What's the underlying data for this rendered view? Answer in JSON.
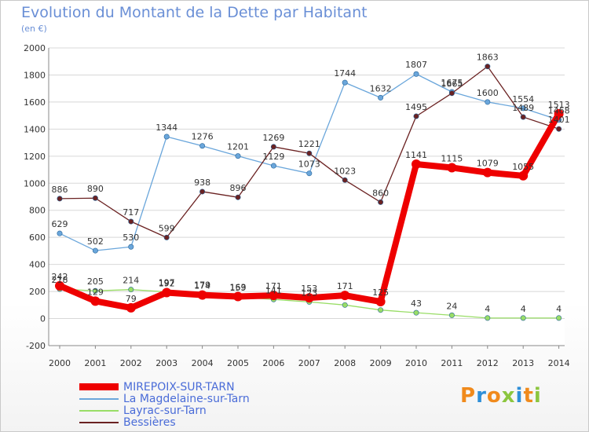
{
  "page": {
    "title": "Evolution du Montant de la Dette par Habitant",
    "unit": "(en €)",
    "logo_text": "Proxiti"
  },
  "chart_data": {
    "type": "line",
    "title": "Evolution du Montant de la Dette par Habitant",
    "subtitle": "(en €)",
    "xlabel": "",
    "ylabel": "",
    "x": [
      2000,
      2001,
      2002,
      2003,
      2004,
      2005,
      2006,
      2007,
      2008,
      2009,
      2010,
      2011,
      2012,
      2013,
      2014
    ],
    "ylim": [
      -200,
      2000
    ],
    "yticks": [
      -200,
      0,
      200,
      400,
      600,
      800,
      1000,
      1200,
      1400,
      1600,
      1800,
      2000
    ],
    "grid": "horizontal",
    "legend_position": "bottom-left",
    "series": [
      {
        "name": "MIREPOIX-SUR-TARN",
        "color": "#ee0000",
        "emphasis": true,
        "values": [
          242,
          129,
          79,
          192,
          174,
          163,
          171,
          153,
          171,
          125,
          1141,
          1115,
          1079,
          1055,
          1513
        ],
        "labels": [
          "242",
          "129",
          "79",
          "192",
          "174",
          "163",
          "171",
          "153",
          "171",
          "125",
          "1141",
          "1115",
          "1079",
          "1055",
          "1513"
        ]
      },
      {
        "name": "La Magdelaine-sur-Tarn",
        "color": "#6aa6db",
        "values": [
          629,
          502,
          530,
          1344,
          1276,
          1201,
          1129,
          1073,
          1744,
          1632,
          1807,
          1675,
          1600,
          1554,
          1468
        ],
        "labels": [
          "629",
          "502",
          "530",
          "1344",
          "1276",
          "1201",
          "1129",
          "1073",
          "1744",
          "1632",
          "1807",
          "1675",
          "1600",
          "1554",
          "1468"
        ]
      },
      {
        "name": "Layrac-sur-Tarn",
        "color": "#99dd66",
        "values": [
          218,
          205,
          214,
          197,
          179,
          159,
          141,
          123,
          100,
          63,
          43,
          24,
          4,
          4,
          4
        ],
        "labels": [
          "218",
          "205",
          "214",
          "197",
          "179",
          "159",
          "141",
          "123",
          "",
          "",
          "43",
          "24",
          "4",
          "4",
          "4"
        ]
      },
      {
        "name": "Bessières",
        "color": "#6b2222",
        "values": [
          886,
          890,
          717,
          599,
          938,
          896,
          1269,
          1221,
          1023,
          860,
          1495,
          1665,
          1863,
          1489,
          1401
        ],
        "labels": [
          "886",
          "890",
          "717",
          "599",
          "938",
          "896",
          "1269",
          "1221",
          "1023",
          "860",
          "1495",
          "1665",
          "1863",
          "1489",
          "1401"
        ]
      }
    ]
  }
}
